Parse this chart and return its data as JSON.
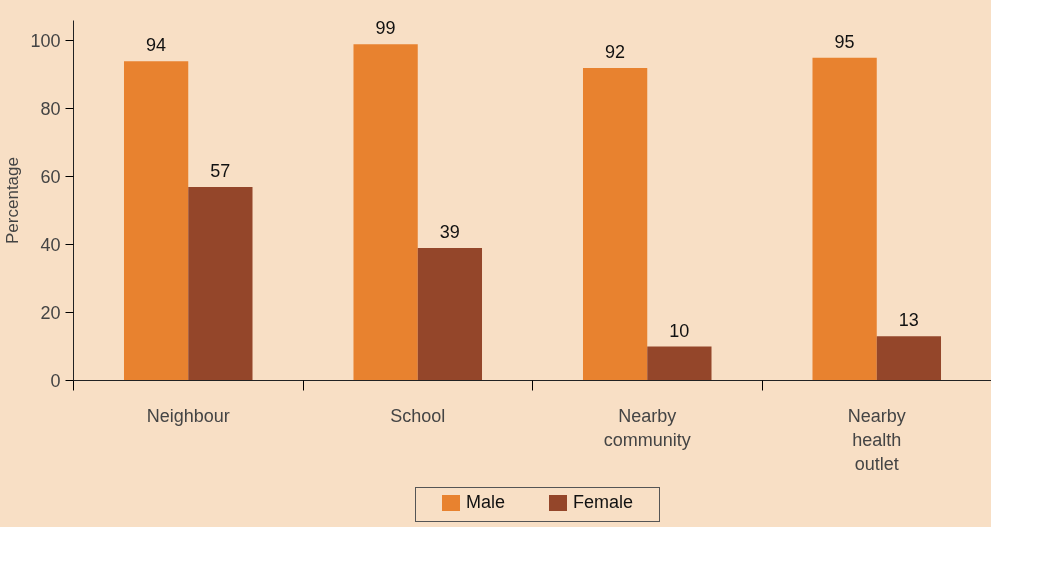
{
  "chart_data": {
    "type": "bar",
    "ylabel": "Percentage",
    "categories": [
      "Neighbour",
      "School",
      "Nearby community",
      "Nearby health outlet"
    ],
    "series": [
      {
        "name": "Male",
        "color": "#e8822f",
        "values": [
          94,
          99,
          92,
          95
        ]
      },
      {
        "name": "Female",
        "color": "#94462a",
        "values": [
          57,
          39,
          10,
          13
        ]
      }
    ],
    "ylim": [
      0,
      106
    ],
    "yticks": [
      0,
      20,
      40,
      60,
      80,
      100
    ],
    "data_labels": true,
    "legend": "bottom",
    "grid": false
  }
}
